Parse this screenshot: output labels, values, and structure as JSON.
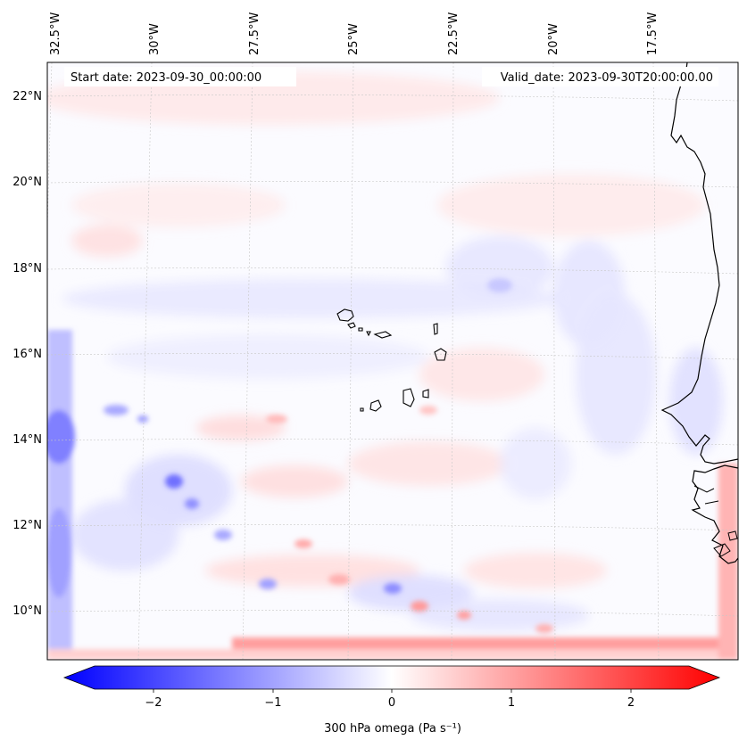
{
  "header": {
    "start_date": "Start date: 2023-09-30_00:00:00",
    "valid_date": "Valid_date: 2023-09-30T20:00:00.00"
  },
  "map": {
    "lon_ticks": [
      "32.5°W",
      "30°W",
      "27.5°W",
      "25°W",
      "22.5°W",
      "20°W",
      "17.5°W"
    ],
    "lat_ticks": [
      "22°N",
      "20°N",
      "18°N",
      "16°N",
      "14°N",
      "12°N",
      "10°N"
    ],
    "field": "300 hPa omega"
  },
  "colorbar": {
    "label": "300 hPa omega (Pa s⁻¹)",
    "ticks": [
      "−2",
      "−1",
      "0",
      "1",
      "2"
    ],
    "min": -2.7,
    "max": 2.7,
    "negative_color": "#0000ff",
    "neutral_color": "#ffffff",
    "positive_color": "#ff0000"
  },
  "colors": {
    "coastline": "#000000",
    "gridline": "#bbbbbb"
  }
}
